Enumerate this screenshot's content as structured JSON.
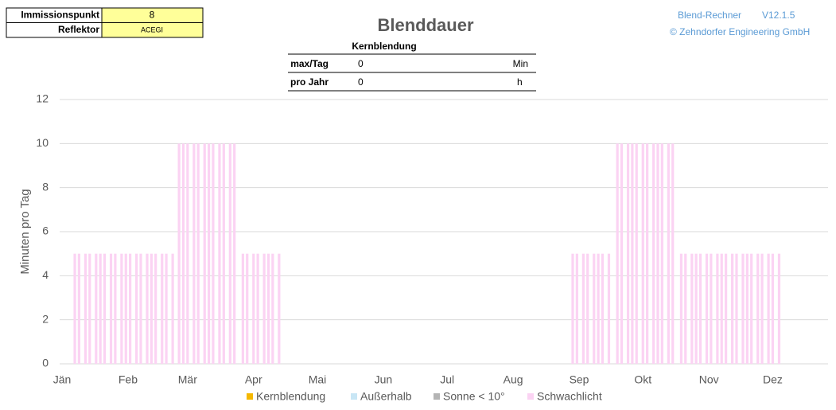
{
  "header": {
    "rows": [
      [
        "Immissionspunkt",
        "8"
      ],
      [
        "Reflektor",
        "ACEGI"
      ]
    ]
  },
  "brand": {
    "app": "Blend-Rechner",
    "version": "V12.1.5",
    "company": "© Zehndorfer Engineering GmbH"
  },
  "summary": {
    "title": "Kernblendung",
    "rows": [
      [
        "max/Tag",
        "0",
        "Min"
      ],
      [
        "pro Jahr",
        "0",
        "h"
      ]
    ]
  },
  "chart_data": {
    "type": "bar",
    "title": "Blenddauer",
    "y_label": "Minuten pro Tag",
    "x": [
      6,
      8,
      11,
      13,
      16,
      18,
      20,
      23,
      25,
      28,
      30,
      32,
      35,
      37,
      40,
      42,
      44,
      47,
      49,
      52,
      55,
      57,
      59,
      62,
      64,
      67,
      69,
      71,
      74,
      76,
      79,
      81,
      85,
      87,
      90,
      92,
      95,
      97,
      99,
      102,
      240,
      242,
      245,
      247,
      250,
      252,
      254,
      257,
      261,
      263,
      266,
      268,
      270,
      273,
      275,
      278,
      280,
      282,
      285,
      287,
      291,
      293,
      296,
      298,
      300,
      303,
      305,
      308,
      310,
      312,
      315,
      317,
      320,
      322,
      324,
      327,
      329,
      332,
      334,
      337
    ],
    "values": [
      5,
      5,
      5,
      5,
      5,
      5,
      5,
      5,
      5,
      5,
      5,
      5,
      5,
      5,
      5,
      5,
      5,
      5,
      5,
      5,
      10,
      10,
      10,
      10,
      10,
      10,
      10,
      10,
      10,
      10,
      10,
      10,
      5,
      5,
      5,
      5,
      5,
      5,
      5,
      5,
      5,
      5,
      5,
      5,
      5,
      5,
      5,
      5,
      10,
      10,
      10,
      10,
      10,
      10,
      10,
      10,
      10,
      10,
      10,
      10,
      5,
      5,
      5,
      5,
      5,
      5,
      5,
      5,
      5,
      5,
      5,
      5,
      5,
      5,
      5,
      5,
      5,
      5,
      5,
      5
    ],
    "color": "#fbd3f3",
    "xlim": [
      0,
      360
    ],
    "xticks": [
      {
        "value": 0,
        "label": "Jän"
      },
      {
        "value": 31,
        "label": "Feb"
      },
      {
        "value": 59,
        "label": "Mär"
      },
      {
        "value": 90,
        "label": "Apr"
      },
      {
        "value": 120,
        "label": "Mai"
      },
      {
        "value": 151,
        "label": "Jun"
      },
      {
        "value": 181,
        "label": "Jul"
      },
      {
        "value": 212,
        "label": "Aug"
      },
      {
        "value": 243,
        "label": "Sep"
      },
      {
        "value": 273,
        "label": "Okt"
      },
      {
        "value": 304,
        "label": "Nov"
      },
      {
        "value": 334,
        "label": "Dez"
      }
    ],
    "ylim": [
      0,
      12
    ],
    "yticks": [
      0,
      2,
      4,
      6,
      8,
      10,
      12
    ],
    "grid": true,
    "legend": [
      {
        "name": "Kernblendung",
        "color": "#f5b800"
      },
      {
        "name": "Außerhalb",
        "color": "#c8e6f5"
      },
      {
        "name": "Sonne < 10°",
        "color": "#b4b4b4"
      },
      {
        "name": "Schwachlicht",
        "color": "#fbd3f3"
      }
    ]
  }
}
